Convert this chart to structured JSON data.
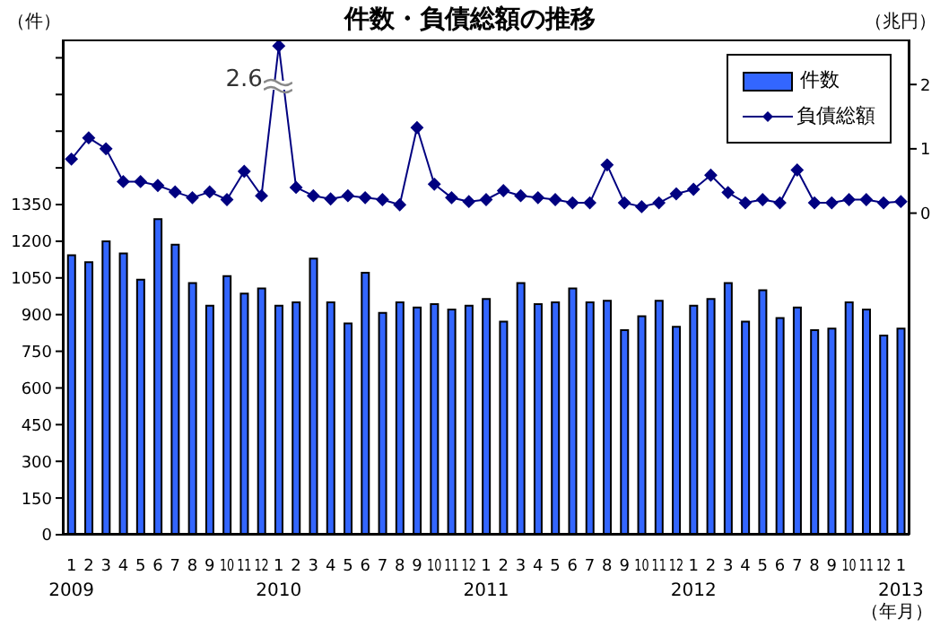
{
  "chart_data": {
    "type": "bar",
    "title": "件数・負債総額の推移",
    "ylabel": "（件）",
    "y2label": "（兆円）",
    "xlabel": "（年月）",
    "categories": [
      "1\n2009",
      "2",
      "3",
      "4",
      "5",
      "6",
      "7",
      "8",
      "9",
      "10",
      "11",
      "12",
      "1\n2010",
      "2",
      "3",
      "4",
      "5",
      "6",
      "7",
      "8",
      "9",
      "10",
      "11",
      "12",
      "1\n2011",
      "2",
      "3",
      "4",
      "5",
      "6",
      "7",
      "8",
      "9",
      "10",
      "11",
      "12",
      "1\n2012",
      "2",
      "3",
      "4",
      "5",
      "6",
      "7",
      "8",
      "9",
      "10",
      "11",
      "12",
      "1\n2013"
    ],
    "series": [
      {
        "name": "件数",
        "color": "#3366ff",
        "values": [
          1143,
          1114,
          1200,
          1150,
          1043,
          1290,
          1186,
          1029,
          936,
          1057,
          986,
          1007,
          936,
          950,
          1129,
          950,
          864,
          1071,
          907,
          950,
          929,
          943,
          921,
          936,
          964,
          871,
          1029,
          943,
          950,
          1007,
          950,
          957,
          836,
          893,
          957,
          850,
          936,
          964,
          1029,
          871,
          1000,
          886,
          929,
          836,
          843,
          950,
          921,
          814,
          843
        ]
      },
      {
        "name": "負債総額",
        "type": "line",
        "axis": "y2",
        "color": "#000080",
        "marker": "diamond",
        "values": [
          0.84,
          1.17,
          1.0,
          0.49,
          0.49,
          0.43,
          0.33,
          0.24,
          0.33,
          0.21,
          0.65,
          0.27,
          2.6,
          0.4,
          0.27,
          0.22,
          0.27,
          0.24,
          0.21,
          0.13,
          1.33,
          0.45,
          0.24,
          0.18,
          0.21,
          0.35,
          0.27,
          0.24,
          0.21,
          0.16,
          0.16,
          0.75,
          0.16,
          0.1,
          0.16,
          0.3,
          0.37,
          0.59,
          0.32,
          0.16,
          0.21,
          0.16,
          0.67,
          0.16,
          0.16,
          0.21,
          0.21,
          0.16,
          0.18
        ]
      }
    ],
    "ylim": [
      0,
      2025
    ],
    "yticks": [
      0,
      150,
      300,
      450,
      600,
      750,
      900,
      1050,
      1200,
      1350,
      {
        "value": 1500,
        "label": null
      },
      {
        "value": 1650,
        "label": null
      },
      {
        "value": 1800,
        "label": null
      },
      {
        "value": 1950,
        "label": null
      }
    ],
    "y2lim": [
      -5,
      2.7
    ],
    "y2ticks": [
      0,
      1,
      2
    ],
    "legend": "top right",
    "annotations": [
      "2.6"
    ]
  }
}
